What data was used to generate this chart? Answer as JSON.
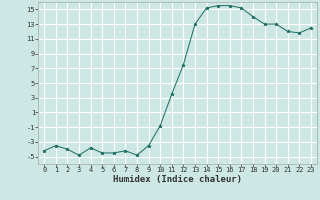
{
  "title": "",
  "xlabel": "Humidex (Indice chaleur)",
  "ylabel": "",
  "x_values": [
    0,
    1,
    2,
    3,
    4,
    5,
    6,
    7,
    8,
    9,
    10,
    11,
    12,
    13,
    14,
    15,
    16,
    17,
    18,
    19,
    20,
    21,
    22,
    23
  ],
  "y_values": [
    -4.2,
    -3.5,
    -4.0,
    -4.8,
    -3.8,
    -4.5,
    -4.5,
    -4.2,
    -4.8,
    -3.5,
    -0.8,
    3.5,
    7.5,
    13.0,
    15.2,
    15.5,
    15.5,
    15.2,
    14.0,
    13.0,
    13.0,
    12.0,
    11.8,
    12.5
  ],
  "ylim": [
    -6,
    16
  ],
  "yticks": [
    -5,
    -3,
    -1,
    1,
    3,
    5,
    7,
    9,
    11,
    13,
    15
  ],
  "xticks": [
    0,
    1,
    2,
    3,
    4,
    5,
    6,
    7,
    8,
    9,
    10,
    11,
    12,
    13,
    14,
    15,
    16,
    17,
    18,
    19,
    20,
    21,
    22,
    23
  ],
  "line_color": "#1a6b5e",
  "marker": "*",
  "marker_size": 2.5,
  "bg_color": "#cde8e4",
  "grid_color": "#ffffff",
  "grid_minor_color": "#dff0ee",
  "spine_color": "#aaaaaa",
  "tick_color": "#333333"
}
